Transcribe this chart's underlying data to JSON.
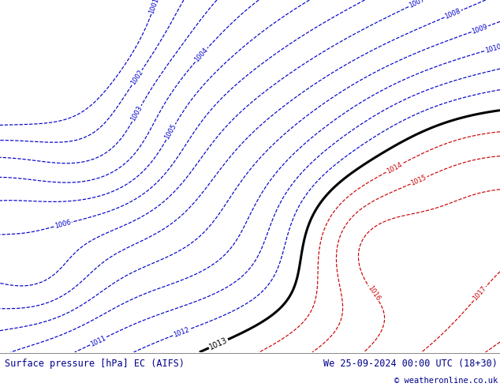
{
  "title_left": "Surface pressure [hPa] EC (AIFS)",
  "title_right": "We 25-09-2024 00:00 UTC (18+30)",
  "copyright": "© weatheronline.co.uk",
  "bg_color": "#b5e878",
  "bottom_bar_color": "#ffffff",
  "bottom_text_color": "#00008B",
  "fig_width": 6.34,
  "fig_height": 4.9,
  "dpi": 100
}
